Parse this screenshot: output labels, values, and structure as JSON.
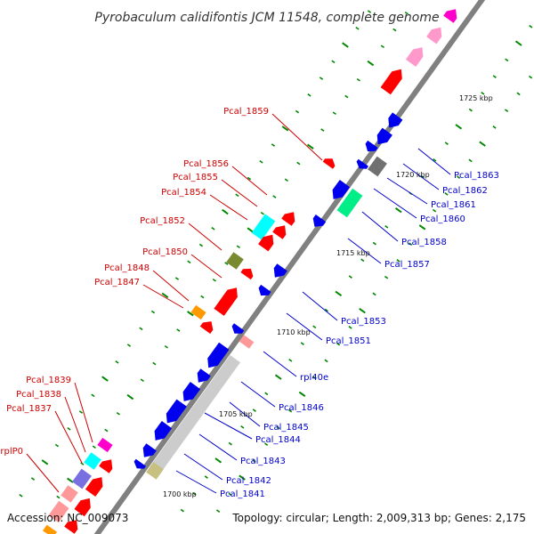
{
  "map": {
    "title": "Pyrobaculum calidifontis JCM 11548, complete genome",
    "accession": "Accession: NC_009073",
    "summary": "Topology: circular; Length: 2,009,313 bp; Genes: 2,175",
    "colors": {
      "red": "#ff0000",
      "blue": "#0000ee",
      "grey": "#cccccc",
      "dark_grey": "#707070",
      "pink": "#ff99cc",
      "light_red": "#ff9999",
      "magenta": "#ff00cc",
      "cyan": "#00ffff",
      "green": "#00ee88",
      "olive": "#7a8a30",
      "orange": "#ff9900",
      "khaki": "#c8c080",
      "purple": "#7a6fe0",
      "label_forward": "#cc0000",
      "label_reverse": "#0000cc",
      "tick": "#008800"
    },
    "kbp_markers": [
      "1700 kbp",
      "1705 kbp",
      "1710 kbp",
      "1715 kbp",
      "1720 kbp",
      "1725 kbp"
    ],
    "labels_forward": [
      "Pcal_1859",
      "Pcal_1856",
      "Pcal_1855",
      "Pcal_1854",
      "Pcal_1852",
      "Pcal_1850",
      "Pcal_1848",
      "Pcal_1847",
      "Pcal_1839",
      "Pcal_1838",
      "Pcal_1837",
      "rplP0"
    ],
    "labels_reverse": [
      "Pcal_1863",
      "Pcal_1862",
      "Pcal_1861",
      "Pcal_1860",
      "Pcal_1858",
      "Pcal_1857",
      "Pcal_1853",
      "Pcal_1851",
      "rpl40e",
      "Pcal_1846",
      "Pcal_1845",
      "Pcal_1844",
      "Pcal_1843",
      "Pcal_1842",
      "Pcal_1841"
    ]
  }
}
